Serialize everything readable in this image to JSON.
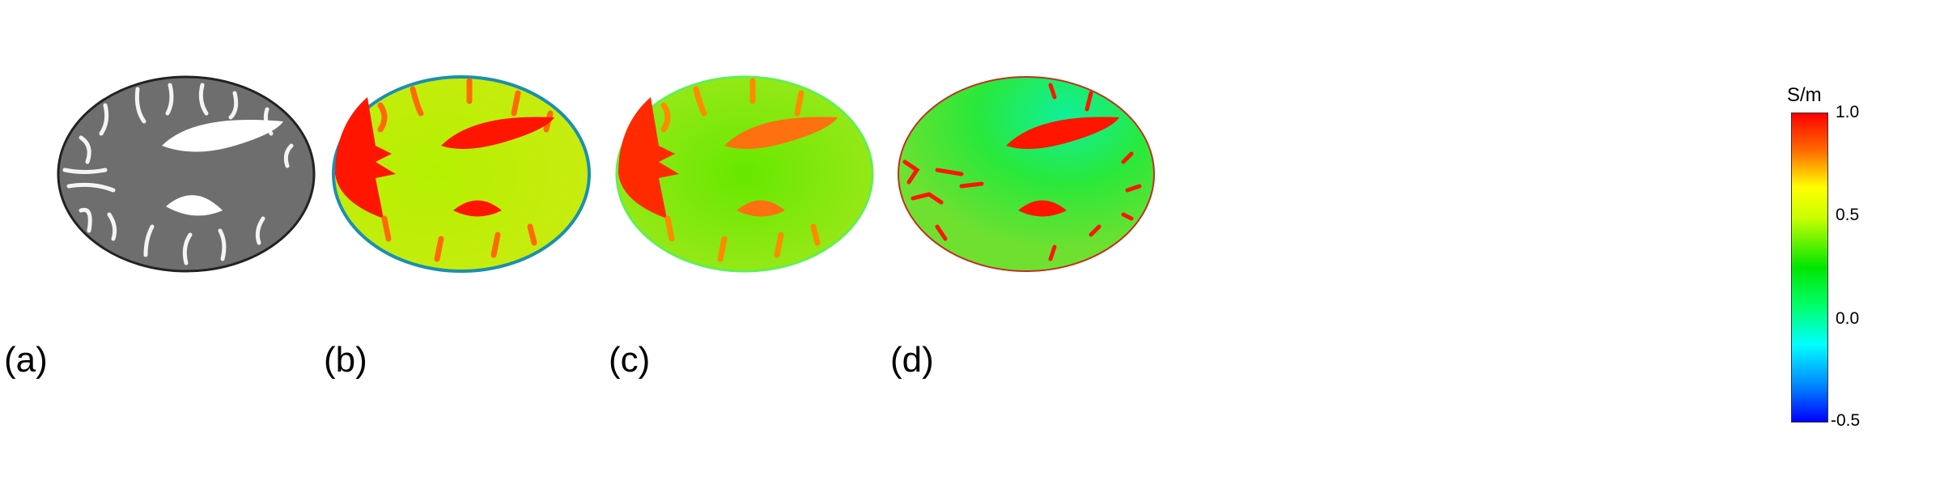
{
  "panels": [
    {
      "label": "(a)",
      "type": "grayscale-mri"
    },
    {
      "label": "(b)",
      "type": "conductivity-map"
    },
    {
      "label": "(c)",
      "type": "conductivity-map"
    },
    {
      "label": "(d)",
      "type": "conductivity-map"
    }
  ],
  "colorbar": {
    "unit": "S/m",
    "ticks": [
      "1.0",
      "0.5",
      "0.0",
      "-0.5"
    ],
    "range": [
      -0.5,
      1.0
    ],
    "colormap": "jet",
    "colors": [
      "#ff0000",
      "#ffff00",
      "#00e600",
      "#00ffff",
      "#0000ff"
    ]
  }
}
